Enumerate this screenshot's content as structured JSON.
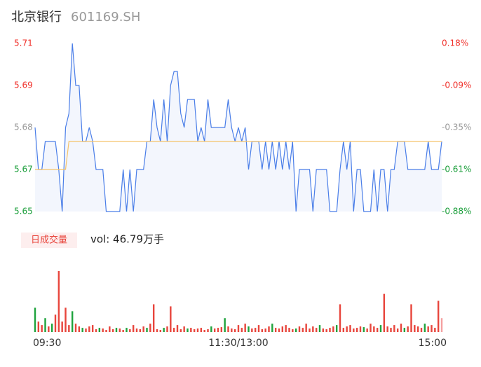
{
  "header": {
    "title": "北京银行",
    "code": "601169.SH"
  },
  "chart_data": [
    {
      "type": "line",
      "ylim": [
        5.65,
        5.71
      ],
      "yticks": [
        5.71,
        {
          "value": 5.695,
          "label": "5.69"
        },
        5.68,
        {
          "value": 5.665,
          "label": "5.67"
        },
        5.65
      ],
      "ytick_colors": [
        "#f0302a",
        "#f0302a",
        "#999999",
        "#1a9e3a",
        "#1a9e3a"
      ],
      "y2lim": [
        0.18,
        -0.88
      ],
      "y2ticks": [
        {
          "value": 0.18,
          "label": "0.18%"
        },
        {
          "value": -0.085,
          "label": "-0.09%"
        },
        {
          "value": -0.35,
          "label": "-0.35%"
        },
        {
          "value": -0.615,
          "label": "-0.61%"
        },
        {
          "value": -0.88,
          "label": "-0.88%"
        }
      ],
      "xlim": [
        0,
        120
      ],
      "fill": "#f3f6fd",
      "series": [
        {
          "color": "#4a7ee8",
          "values": [
            5.68,
            5.665,
            5.665,
            5.675,
            5.675,
            5.675,
            5.675,
            5.665,
            5.65,
            5.68,
            5.685,
            5.71,
            5.695,
            5.695,
            5.675,
            5.675,
            5.68,
            5.675,
            5.665,
            5.665,
            5.665,
            5.65,
            5.65,
            5.65,
            5.65,
            5.65,
            5.665,
            5.65,
            5.665,
            5.65,
            5.665,
            5.665,
            5.665,
            5.675,
            5.675,
            5.69,
            5.68,
            5.675,
            5.69,
            5.675,
            5.695,
            5.7,
            5.7,
            5.685,
            5.68,
            5.69,
            5.69,
            5.69,
            5.675,
            5.68,
            5.675,
            5.69,
            5.68,
            5.68,
            5.68,
            5.68,
            5.68,
            5.69,
            5.68,
            5.675,
            5.68,
            5.675,
            5.68,
            5.665,
            5.675,
            5.675,
            5.675,
            5.665,
            5.675,
            5.665,
            5.675,
            5.665,
            5.675,
            5.665,
            5.675,
            5.665,
            5.675,
            5.65,
            5.665,
            5.665,
            5.665,
            5.665,
            5.65,
            5.665,
            5.665,
            5.665,
            5.665,
            5.65,
            5.65,
            5.65,
            5.665,
            5.675,
            5.665,
            5.675,
            5.65,
            5.665,
            5.665,
            5.65,
            5.65,
            5.65,
            5.665,
            5.65,
            5.665,
            5.665,
            5.65,
            5.665,
            5.665,
            5.675,
            5.675,
            5.675,
            5.665,
            5.665,
            5.665,
            5.665,
            5.665,
            5.665,
            5.675,
            5.665,
            5.665,
            5.665,
            5.675
          ]
        },
        {
          "color": "#f5c36a",
          "values": [
            5.665,
            5.665,
            5.665,
            5.665,
            5.665,
            5.665,
            5.665,
            5.665,
            5.665,
            5.665,
            5.675,
            5.675,
            5.675,
            5.675,
            5.675,
            5.675,
            5.675,
            5.675,
            5.675,
            5.675,
            5.675,
            5.675,
            5.675,
            5.675,
            5.675,
            5.675,
            5.675,
            5.675,
            5.675,
            5.675,
            5.675,
            5.675,
            5.675,
            5.675,
            5.675,
            5.675,
            5.675,
            5.675,
            5.675,
            5.675,
            5.675,
            5.675,
            5.675,
            5.675,
            5.675,
            5.675,
            5.675,
            5.675,
            5.675,
            5.675,
            5.675,
            5.675,
            5.675,
            5.675,
            5.675,
            5.675,
            5.675,
            5.675,
            5.675,
            5.675,
            5.675,
            5.675,
            5.675,
            5.675,
            5.675,
            5.675,
            5.675,
            5.675,
            5.675,
            5.675,
            5.675,
            5.675,
            5.675,
            5.675,
            5.675,
            5.675,
            5.675,
            5.675,
            5.675,
            5.675,
            5.675,
            5.675,
            5.675,
            5.675,
            5.675,
            5.675,
            5.675,
            5.675,
            5.675,
            5.675,
            5.675,
            5.675,
            5.675,
            5.675,
            5.675,
            5.675,
            5.675,
            5.675,
            5.675,
            5.675,
            5.675,
            5.675,
            5.675,
            5.675,
            5.675,
            5.675,
            5.675,
            5.675,
            5.675,
            5.675,
            5.675,
            5.675,
            5.675,
            5.675,
            5.675,
            5.675,
            5.675,
            5.675,
            5.675,
            5.675,
            5.675
          ]
        }
      ]
    },
    {
      "type": "bar",
      "label": "日成交量",
      "annotation": "vol: 46.79万手",
      "ylim": [
        0,
        90
      ],
      "xlim": [
        0,
        120
      ],
      "xticks": [
        {
          "value": 0,
          "label": "09:30"
        },
        {
          "value": 60,
          "label": "11:30/13:00"
        },
        {
          "value": 120,
          "label": "15:00"
        }
      ],
      "values": [
        35,
        15,
        10,
        20,
        8,
        12,
        25,
        88,
        15,
        35,
        10,
        30,
        12,
        8,
        6,
        5,
        8,
        10,
        4,
        6,
        5,
        3,
        8,
        4,
        6,
        5,
        3,
        6,
        4,
        10,
        5,
        4,
        8,
        6,
        12,
        40,
        4,
        3,
        6,
        8,
        37,
        6,
        10,
        4,
        8,
        5,
        6,
        4,
        5,
        6,
        3,
        4,
        8,
        5,
        6,
        7,
        20,
        8,
        5,
        4,
        10,
        6,
        12,
        8,
        5,
        6,
        10,
        4,
        5,
        8,
        12,
        6,
        5,
        8,
        10,
        6,
        4,
        5,
        8,
        6,
        12,
        5,
        8,
        6,
        10,
        5,
        4,
        6,
        8,
        10,
        40,
        6,
        8,
        10,
        5,
        6,
        8,
        7,
        5,
        12,
        8,
        6,
        10,
        55,
        8,
        6,
        10,
        5,
        12,
        6,
        8,
        40,
        10,
        8,
        6,
        12,
        8,
        10,
        6,
        45,
        20
      ],
      "colors": [
        "#1fa33d",
        "#e8453c",
        "#e8453c",
        "#1fa33d",
        "#e8453c",
        "#1fa33d",
        "#e8453c",
        "#e8453c",
        "#e8453c",
        "#e8453c",
        "#e8453c",
        "#1fa33d",
        "#e8453c",
        "#e8453c",
        "#1fa33d",
        "#e8453c",
        "#e8453c",
        "#e8453c",
        "#e8453c",
        "#1fa33d",
        "#e8453c",
        "#e8453c",
        "#e8453c",
        "#e8453c",
        "#1fa33d",
        "#e8453c",
        "#e8453c",
        "#1fa33d",
        "#e8453c",
        "#e8453c",
        "#e8453c",
        "#e8453c",
        "#e8453c",
        "#1fa33d",
        "#e8453c",
        "#e8453c",
        "#e8453c",
        "#e8453c",
        "#1fa33d",
        "#e8453c",
        "#e8453c",
        "#e8453c",
        "#e8453c",
        "#e8453c",
        "#e8453c",
        "#1fa33d",
        "#e8453c",
        "#e8453c",
        "#e8453c",
        "#e8453c",
        "#e8453c",
        "#e8453c",
        "#1fa33d",
        "#e8453c",
        "#e8453c",
        "#e8453c",
        "#1fa33d",
        "#e8453c",
        "#e8453c",
        "#e8453c",
        "#e8453c",
        "#e8453c",
        "#e8453c",
        "#1fa33d",
        "#e8453c",
        "#e8453c",
        "#e8453c",
        "#e8453c",
        "#e8453c",
        "#e8453c",
        "#1fa33d",
        "#e8453c",
        "#e8453c",
        "#e8453c",
        "#e8453c",
        "#e8453c",
        "#e8453c",
        "#1fa33d",
        "#e8453c",
        "#e8453c",
        "#e8453c",
        "#e8453c",
        "#e8453c",
        "#e8453c",
        "#1fa33d",
        "#e8453c",
        "#e8453c",
        "#e8453c",
        "#e8453c",
        "#1fa33d",
        "#e8453c",
        "#e8453c",
        "#e8453c",
        "#e8453c",
        "#e8453c",
        "#e8453c",
        "#e8453c",
        "#1fa33d",
        "#e8453c",
        "#e8453c",
        "#e8453c",
        "#e8453c",
        "#1fa33d",
        "#e8453c",
        "#e8453c",
        "#e8453c",
        "#e8453c",
        "#e8453c",
        "#e8453c",
        "#1fa33d",
        "#e8453c",
        "#e8453c",
        "#e8453c",
        "#e8453c",
        "#e8453c",
        "#1fa33d",
        "#e8453c",
        "#e8453c",
        "#e8453c",
        "#e8453c",
        "#f5a0a0"
      ]
    }
  ]
}
